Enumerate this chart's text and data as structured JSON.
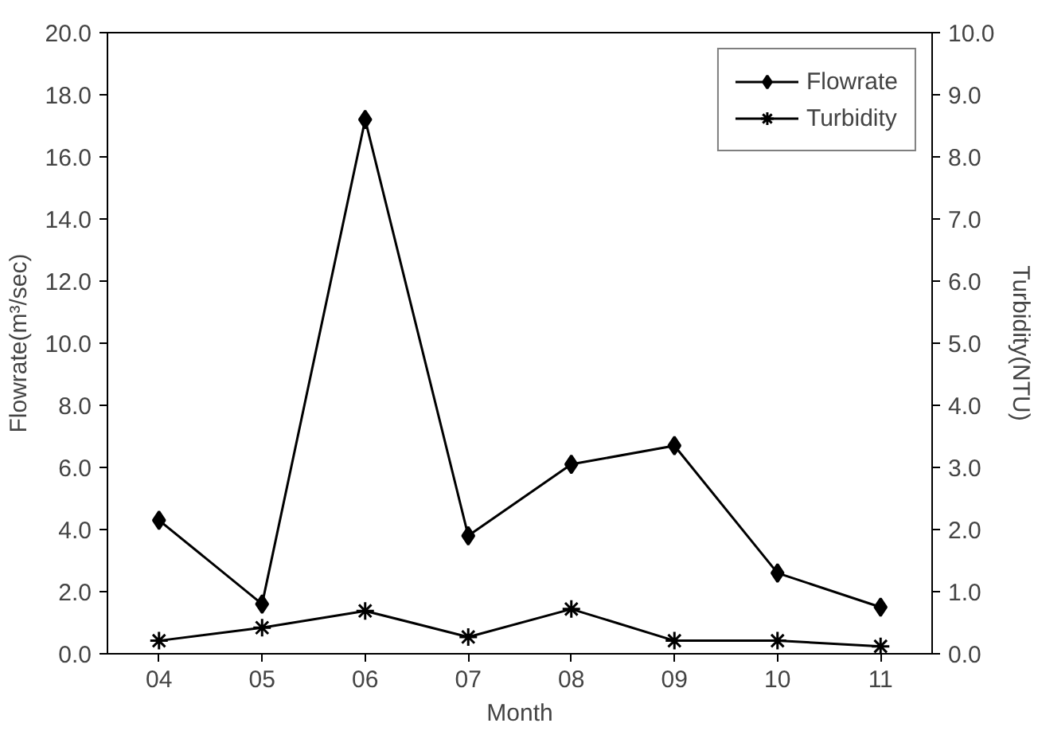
{
  "chart_data": {
    "type": "line",
    "xlabel": "Month",
    "ylabel": "Flowrate(m³/sec)",
    "y2label": "Turbidity(NTU)",
    "categories": [
      "04",
      "05",
      "06",
      "07",
      "08",
      "09",
      "10",
      "11"
    ],
    "series": [
      {
        "name": "Flowrate",
        "color": "#000000",
        "marker": "diamond",
        "values": [
          4.3,
          1.6,
          17.2,
          3.8,
          6.1,
          6.7,
          2.6,
          1.5
        ]
      },
      {
        "name": "Turbidity",
        "color": "#000000",
        "marker": "cross",
        "axis": "y2",
        "values": [
          0.21,
          0.42,
          0.69,
          0.27,
          0.72,
          0.21,
          0.21,
          0.12
        ]
      }
    ],
    "ylim": [
      0,
      20
    ],
    "yticks": [
      {
        "value": 0,
        "label": "0.0"
      },
      {
        "value": 2,
        "label": "2.0"
      },
      {
        "value": 4,
        "label": "4.0"
      },
      {
        "value": 6,
        "label": "6.0"
      },
      {
        "value": 8,
        "label": "8.0"
      },
      {
        "value": 10,
        "label": "10.0"
      },
      {
        "value": 12,
        "label": "12.0"
      },
      {
        "value": 14,
        "label": "14.0"
      },
      {
        "value": 16,
        "label": "16.0"
      },
      {
        "value": 18,
        "label": "18.0"
      },
      {
        "value": 20,
        "label": "20.0"
      }
    ],
    "y2lim": [
      0,
      10
    ],
    "y2ticks": [
      {
        "value": 0,
        "label": "0.0"
      },
      {
        "value": 1,
        "label": "1.0"
      },
      {
        "value": 2,
        "label": "2.0"
      },
      {
        "value": 3,
        "label": "3.0"
      },
      {
        "value": 4,
        "label": "4.0"
      },
      {
        "value": 5,
        "label": "5.0"
      },
      {
        "value": 6,
        "label": "6.0"
      },
      {
        "value": 7,
        "label": "7.0"
      },
      {
        "value": 8,
        "label": "8.0"
      },
      {
        "value": 9,
        "label": "9.0"
      },
      {
        "value": 10,
        "label": "10.0"
      }
    ],
    "grid": false,
    "legend": "top right",
    "line_style": "solid"
  }
}
